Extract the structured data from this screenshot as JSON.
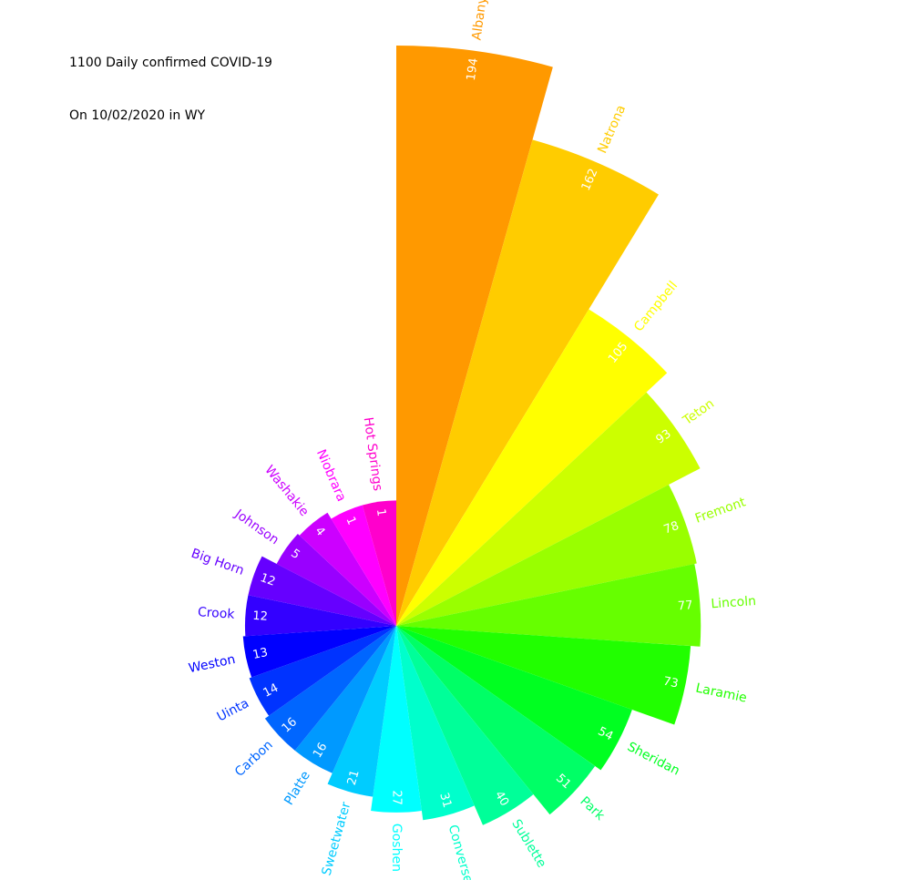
{
  "chart_data": {
    "type": "bar",
    "layout": "circular-barplot",
    "title": "1100 Daily confirmed COVID-19",
    "subtitle": "On 10/02/2020 in WY",
    "categories": [
      "Albany",
      "Natrona",
      "Campbell",
      "Teton",
      "Fremont",
      "Lincoln",
      "Laramie",
      "Sheridan",
      "Park",
      "Sublette",
      "Converse",
      "Goshen",
      "Sweetwater",
      "Platte",
      "Carbon",
      "Uinta",
      "Weston",
      "Crook",
      "Big Horn",
      "Johnson",
      "Washakie",
      "Niobrara",
      "Hot Springs"
    ],
    "values": [
      194,
      162,
      105,
      93,
      78,
      77,
      73,
      54,
      51,
      40,
      31,
      27,
      21,
      16,
      16,
      14,
      13,
      12,
      12,
      5,
      4,
      1,
      1
    ],
    "colors": [
      "#ff9900",
      "#ffcc00",
      "#ffff00",
      "#ccff00",
      "#99ff00",
      "#66ff00",
      "#21ff00",
      "#00ff21",
      "#00ff66",
      "#00ff99",
      "#00ffcc",
      "#00ffff",
      "#00ccff",
      "#0099ff",
      "#0066ff",
      "#0033ff",
      "#0000ff",
      "#3300ff",
      "#6600ff",
      "#9900ff",
      "#cc00ff",
      "#ff00ff",
      "#ff00cc"
    ],
    "grid": false,
    "axes": false,
    "legend": "none"
  }
}
